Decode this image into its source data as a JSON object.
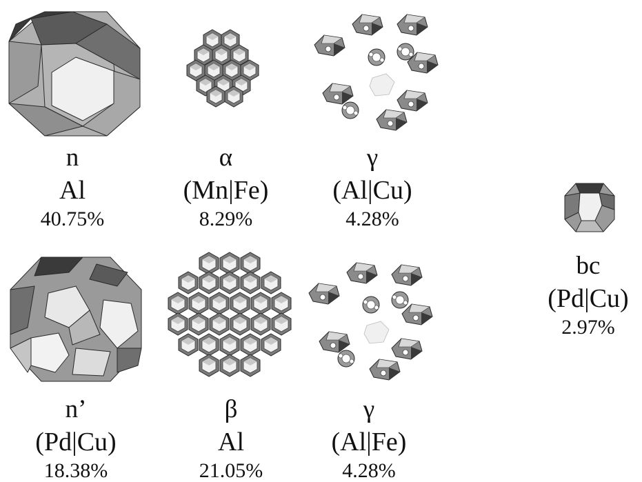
{
  "colors": {
    "light": "#f0f0f0",
    "mid": "#b0b0b0",
    "dark": "#6f6f6f",
    "darker": "#3a3a3a",
    "edge": "#2a2a2a"
  },
  "items": [
    {
      "symbol": "n",
      "elements": "Al",
      "percent": "40.75%",
      "icon": "truncated-octahedron-icon"
    },
    {
      "symbol": "α",
      "elements": "(Mn|Fe)",
      "percent": "8.29%",
      "icon": "alpha-cluster-icon"
    },
    {
      "symbol": "γ",
      "elements": "(Al|Cu)",
      "percent": "4.28%",
      "icon": "gamma-fragmented-cluster-icon"
    },
    {
      "symbol": "n’",
      "elements": "(Pd|Cu)",
      "percent": "18.38%",
      "icon": "large-polyhedron-icon"
    },
    {
      "symbol": "β",
      "elements": "Al",
      "percent": "21.05%",
      "icon": "beta-cluster-icon"
    },
    {
      "symbol": "γ",
      "elements": "(Al|Fe)",
      "percent": "4.28%",
      "icon": "gamma-fragmented-cluster-icon"
    },
    {
      "symbol": "bc",
      "elements": "(Pd|Cu)",
      "percent": "2.97%",
      "icon": "small-polyhedron-icon"
    }
  ]
}
